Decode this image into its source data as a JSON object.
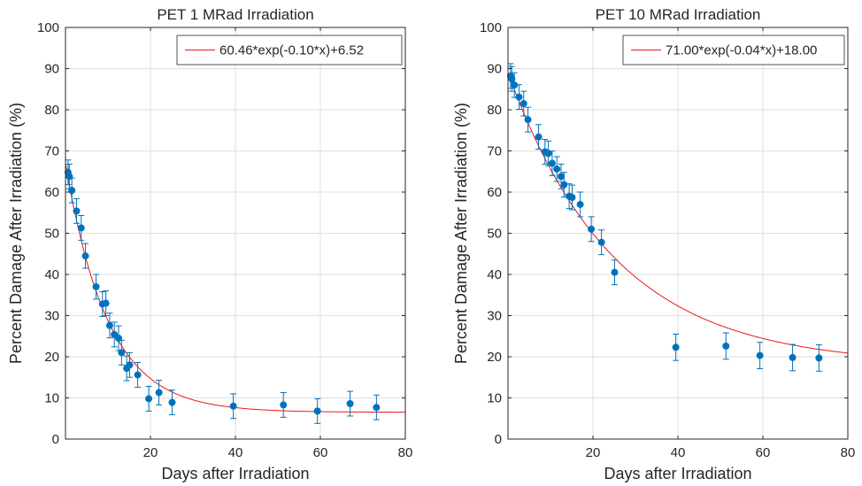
{
  "chart_data": [
    {
      "type": "scatter",
      "title": "PET 1 MRad Irradiation",
      "xlabel": "Days after Irradiation",
      "ylabel": "Percent Damage After Irradiation (%)",
      "xlim": [
        0,
        80
      ],
      "ylim": [
        0,
        100
      ],
      "xticks": [
        20,
        40,
        60,
        80
      ],
      "yticks": [
        0,
        10,
        20,
        30,
        40,
        50,
        60,
        70,
        80,
        90,
        100
      ],
      "grid": true,
      "legend_position": "top-right",
      "fit": {
        "label": "60.46*exp(-0.10*x)+6.52",
        "a": 60.46,
        "b": 0.1,
        "c": 6.52,
        "color": "#e8191c"
      },
      "marker_color": "#0072bd",
      "points": [
        {
          "x": 0.6,
          "y": 64.8,
          "err": 3.0
        },
        {
          "x": 0.9,
          "y": 63.8,
          "err": 3.0
        },
        {
          "x": 1.5,
          "y": 60.4,
          "err": 3.0
        },
        {
          "x": 2.6,
          "y": 55.4,
          "err": 3.0
        },
        {
          "x": 3.7,
          "y": 51.3,
          "err": 3.0
        },
        {
          "x": 4.7,
          "y": 44.5,
          "err": 3.0
        },
        {
          "x": 7.2,
          "y": 37.0,
          "err": 3.0
        },
        {
          "x": 8.7,
          "y": 32.8,
          "err": 3.0
        },
        {
          "x": 9.5,
          "y": 33.0,
          "err": 3.0
        },
        {
          "x": 10.4,
          "y": 27.6,
          "err": 3.0
        },
        {
          "x": 11.5,
          "y": 25.4,
          "err": 3.0
        },
        {
          "x": 12.5,
          "y": 24.5,
          "err": 3.0
        },
        {
          "x": 13.2,
          "y": 21.0,
          "err": 3.0
        },
        {
          "x": 14.4,
          "y": 17.2,
          "err": 3.0
        },
        {
          "x": 15.1,
          "y": 18.0,
          "err": 3.0
        },
        {
          "x": 17.0,
          "y": 15.6,
          "err": 3.0
        },
        {
          "x": 19.6,
          "y": 9.8,
          "err": 3.0
        },
        {
          "x": 22.0,
          "y": 11.3,
          "err": 3.0
        },
        {
          "x": 25.1,
          "y": 8.9,
          "err": 3.0
        },
        {
          "x": 39.5,
          "y": 8.0,
          "err": 3.0
        },
        {
          "x": 51.3,
          "y": 8.3,
          "err": 3.0
        },
        {
          "x": 59.3,
          "y": 6.8,
          "err": 3.0
        },
        {
          "x": 67.0,
          "y": 8.6,
          "err": 3.0
        },
        {
          "x": 73.2,
          "y": 7.7,
          "err": 3.0
        }
      ]
    },
    {
      "type": "scatter",
      "title": "PET 10 MRad Irradiation",
      "xlabel": "Days after Irradiation",
      "ylabel": "Percent Damage After Irradiation (%)",
      "xlim": [
        0,
        80
      ],
      "ylim": [
        0,
        100
      ],
      "xticks": [
        20,
        40,
        60,
        80
      ],
      "yticks": [
        0,
        10,
        20,
        30,
        40,
        50,
        60,
        70,
        80,
        90,
        100
      ],
      "grid": true,
      "legend_position": "top-right",
      "fit": {
        "label": "71.00*exp(-0.04*x)+18.00",
        "a": 71.0,
        "b": 0.04,
        "c": 18.0,
        "color": "#e8191c"
      },
      "marker_color": "#0072bd",
      "points": [
        {
          "x": 0.6,
          "y": 88.2,
          "err": 3.0
        },
        {
          "x": 0.9,
          "y": 87.5,
          "err": 3.0
        },
        {
          "x": 1.5,
          "y": 86.0,
          "err": 3.0
        },
        {
          "x": 2.6,
          "y": 83.1,
          "err": 3.0
        },
        {
          "x": 3.7,
          "y": 81.5,
          "err": 3.0
        },
        {
          "x": 4.7,
          "y": 77.6,
          "err": 3.0
        },
        {
          "x": 7.2,
          "y": 73.4,
          "err": 3.0
        },
        {
          "x": 8.7,
          "y": 69.8,
          "err": 3.0
        },
        {
          "x": 9.5,
          "y": 69.4,
          "err": 3.0
        },
        {
          "x": 10.4,
          "y": 67.0,
          "err": 3.0
        },
        {
          "x": 11.5,
          "y": 65.6,
          "err": 3.0
        },
        {
          "x": 12.5,
          "y": 63.8,
          "err": 3.0
        },
        {
          "x": 13.2,
          "y": 61.8,
          "err": 3.0
        },
        {
          "x": 14.4,
          "y": 59.0,
          "err": 3.0
        },
        {
          "x": 15.1,
          "y": 58.7,
          "err": 3.0
        },
        {
          "x": 17.0,
          "y": 57.0,
          "err": 3.0
        },
        {
          "x": 19.6,
          "y": 51.0,
          "err": 3.0
        },
        {
          "x": 22.0,
          "y": 47.8,
          "err": 3.0
        },
        {
          "x": 25.1,
          "y": 40.5,
          "err": 3.0
        },
        {
          "x": 39.5,
          "y": 22.3,
          "err": 3.2
        },
        {
          "x": 51.3,
          "y": 22.6,
          "err": 3.2
        },
        {
          "x": 59.3,
          "y": 20.3,
          "err": 3.2
        },
        {
          "x": 67.0,
          "y": 19.8,
          "err": 3.2
        },
        {
          "x": 73.2,
          "y": 19.7,
          "err": 3.2
        }
      ]
    }
  ]
}
